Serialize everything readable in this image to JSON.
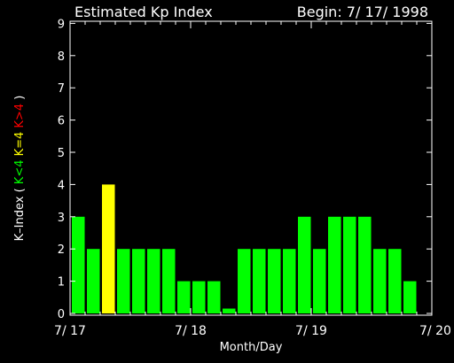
{
  "chart_data": {
    "type": "bar",
    "title": "Estimated Kp Index",
    "begin_label": "Begin: 7/ 17/ 1998",
    "xlabel": "Month/Day",
    "ylabel": {
      "prefix": "K–Index (",
      "parts": [
        {
          "text": "K<4",
          "color": "#00ff00"
        },
        {
          "text": "K=4",
          "color": "#ffff00"
        },
        {
          "text": "K>4",
          "color": "#ff0000"
        }
      ],
      "suffix": ")"
    },
    "ylim": [
      0,
      9
    ],
    "yticks": [
      "0",
      "1",
      "2",
      "3",
      "4",
      "5",
      "6",
      "7",
      "8",
      "9"
    ],
    "xlim": [
      0,
      24
    ],
    "xticks": [
      {
        "x": 0,
        "label": "7/ 17"
      },
      {
        "x": 8,
        "label": "7/ 18"
      },
      {
        "x": 16,
        "label": "7/ 19"
      },
      {
        "x": 24,
        "label": "7/ 20"
      }
    ],
    "interval_hours": 3,
    "values": [
      3,
      2,
      4,
      2,
      2,
      2,
      2,
      1,
      1,
      1,
      0.15,
      2,
      2,
      2,
      2,
      3,
      2,
      3,
      3,
      3,
      2,
      2,
      1
    ],
    "colors": {
      "below": "#00ff00",
      "equal": "#ffff00",
      "above": "#ff0000",
      "axis": "#ffffff",
      "background": "#000000"
    },
    "grid": false,
    "legend": "none"
  }
}
